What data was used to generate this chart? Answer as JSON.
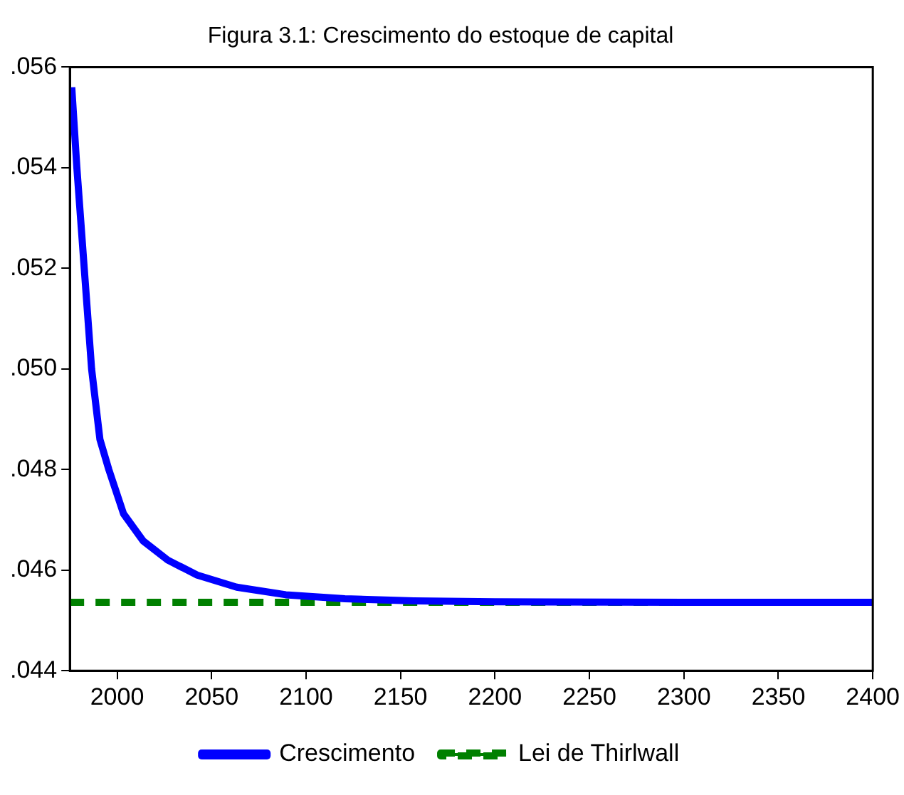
{
  "chart_data": {
    "type": "line",
    "title": "Figura 3.1: Crescimento do estoque de capital",
    "xlim": [
      1975,
      2400
    ],
    "xticks": [
      2000,
      2050,
      2100,
      2150,
      2200,
      2250,
      2300,
      2350,
      2400
    ],
    "ylim": [
      0.044,
      0.056
    ],
    "yticks": [
      {
        "value": 0.044,
        "label": ".044"
      },
      {
        "value": 0.046,
        "label": ".046"
      },
      {
        "value": 0.048,
        "label": ".048"
      },
      {
        "value": 0.05,
        "label": ".050"
      },
      {
        "value": 0.052,
        "label": ".052"
      },
      {
        "value": 0.054,
        "label": ".054"
      },
      {
        "value": 0.056,
        "label": ".056"
      }
    ],
    "grid": false,
    "legend": "bottom",
    "marker": "none",
    "series": [
      {
        "name": "Crescimento",
        "color": "#0000ff",
        "line_style": "solid",
        "x": [
          1976,
          1978.7,
          1982.6,
          1986.5,
          1990.9,
          1995.6,
          2003.4,
          2013.8,
          2026.8,
          2042.4,
          2063.3,
          2089.3,
          2120.5,
          2157,
          2200,
          2300,
          2400
        ],
        "values": [
          0.0556,
          0.054,
          0.052,
          0.05,
          0.0486,
          0.048,
          0.04712,
          0.04658,
          0.0462,
          0.0459,
          0.04566,
          0.04551,
          0.04543,
          0.04539,
          0.04537,
          0.04536,
          0.04536
        ]
      },
      {
        "name": "Lei de Thirlwall",
        "color": "#008000",
        "line_style": "dashed",
        "x": [
          1975,
          2400
        ],
        "values": [
          0.04536,
          0.04536
        ]
      }
    ]
  }
}
